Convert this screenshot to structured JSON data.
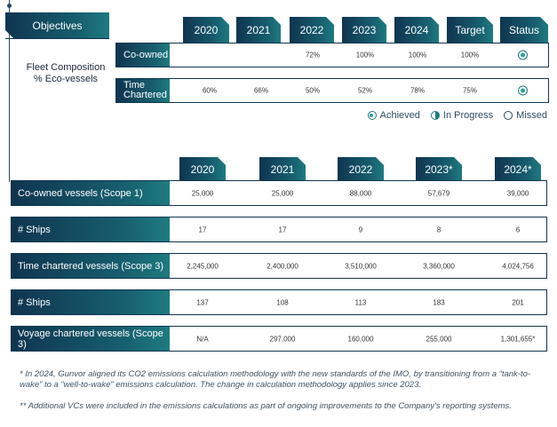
{
  "objectives": {
    "tab_label": "Objectives",
    "fleet_label_line1": "Fleet Composition",
    "fleet_label_line2": "% Eco-vessels",
    "headers": [
      "2020",
      "2021",
      "2022",
      "2023",
      "2024",
      "Target",
      "Status"
    ],
    "rows": [
      {
        "label": "Co-owned",
        "values": [
          "",
          "",
          "72%",
          "100%",
          "100%",
          "100%"
        ],
        "status": "achieved"
      },
      {
        "label_line1": "Time",
        "label_line2": "Chartered",
        "values": [
          "60%",
          "66%",
          "50%",
          "52%",
          "78%",
          "75%"
        ],
        "status": "achieved"
      }
    ],
    "legend": {
      "achieved": "Achieved",
      "in_progress": "In Progress",
      "missed": "Missed"
    }
  },
  "emissions": {
    "headers": [
      "2020",
      "2021",
      "2022",
      "2023*",
      "2024*"
    ],
    "rows": [
      {
        "label": "Co-owned vessels (Scope 1)",
        "values": [
          "25,000",
          "25,000",
          "88,000",
          "57,679",
          "39,000"
        ]
      },
      {
        "label": "# Ships",
        "values": [
          "17",
          "17",
          "9",
          "8",
          "6"
        ]
      },
      {
        "label": "Time chartered vessels (Scope 3)",
        "values": [
          "2,245,000",
          "2,400,000",
          "3,510,000",
          "3,360,000",
          "4,024,756"
        ]
      },
      {
        "label": "# Ships",
        "values": [
          "137",
          "108",
          "113",
          "183",
          "201"
        ]
      },
      {
        "label": "Voyage chartered vessels (Scope 3)",
        "values": [
          "N/A",
          "297,000",
          "160,000",
          "255,000",
          "1,301,655*"
        ]
      }
    ]
  },
  "notes": {
    "note1": "* In 2024, Gunvor aligned its CO2 emissions calculation methodology with the new standards of the IMO, by transitioning from a “tank-to-wake” to a “well-to-wake” emissions calculation. The change in calculation methodology applies since 2023.",
    "note2": "** Additional VCs were included in the emissions calculations as part of ongoing improvements to the Company’s reporting systems."
  },
  "colors": {
    "primary_dark": "#0f3550",
    "teal": "#1e7b80",
    "status_fill": "#2aa09a"
  }
}
